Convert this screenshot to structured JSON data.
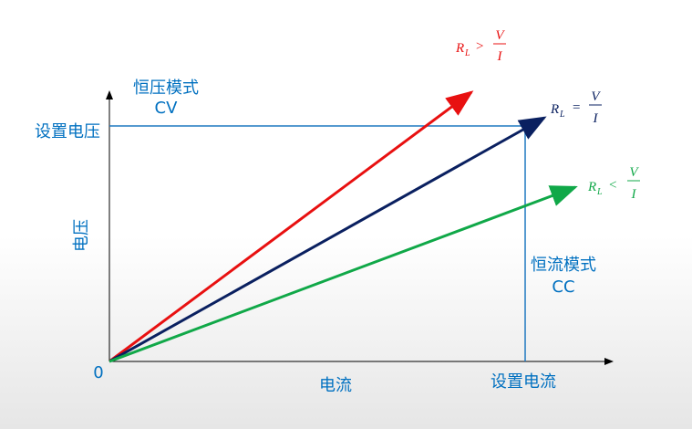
{
  "labels": {
    "cv_mode": "恒压模式",
    "cv": "CV",
    "set_voltage": "设置电压",
    "voltage_axis": "电压",
    "origin": "0",
    "current_axis": "电流",
    "set_current": "设置电流",
    "cc_mode": "恒流模式",
    "cc": "CC"
  },
  "formulas": [
    {
      "symbol": "R",
      "subscript": "L",
      "relation": ">",
      "numerator": "V",
      "denominator": "I"
    },
    {
      "symbol": "R",
      "subscript": "L",
      "relation": "=",
      "numerator": "V",
      "denominator": "I"
    },
    {
      "symbol": "R",
      "subscript": "L",
      "relation": "<",
      "numerator": "V",
      "denominator": "I"
    }
  ]
}
